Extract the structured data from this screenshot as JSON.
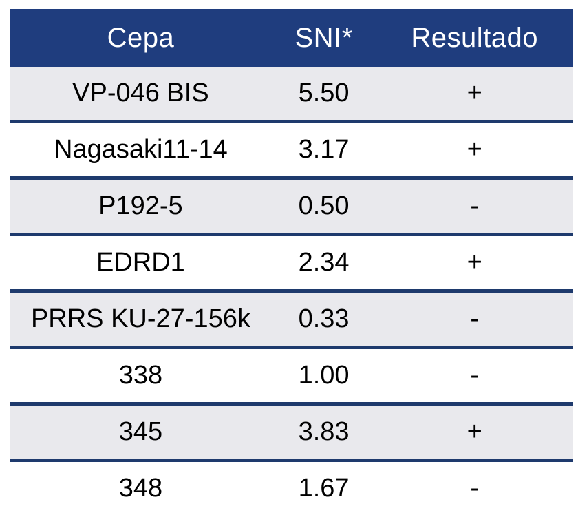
{
  "table": {
    "columns": [
      "Cepa",
      "SNI*",
      "Resultado"
    ],
    "rows": [
      {
        "cepa": "VP-046 BIS",
        "sni": "5.50",
        "resultado": "+"
      },
      {
        "cepa": "Nagasaki11-14",
        "sni": "3.17",
        "resultado": "+"
      },
      {
        "cepa": "P192-5",
        "sni": "0.50",
        "resultado": "-"
      },
      {
        "cepa": "EDRD1",
        "sni": "2.34",
        "resultado": "+"
      },
      {
        "cepa": "PRRS KU-27-156k",
        "sni": "0.33",
        "resultado": "-"
      },
      {
        "cepa": "338",
        "sni": "1.00",
        "resultado": "-"
      },
      {
        "cepa": "345",
        "sni": "3.83",
        "resultado": "+"
      },
      {
        "cepa": "348",
        "sni": "1.67",
        "resultado": "-"
      }
    ]
  },
  "chart_data": {
    "type": "table",
    "title": "",
    "columns": [
      "Cepa",
      "SNI*",
      "Resultado"
    ],
    "rows": [
      [
        "VP-046 BIS",
        5.5,
        "+"
      ],
      [
        "Nagasaki11-14",
        3.17,
        "+"
      ],
      [
        "P192-5",
        0.5,
        "-"
      ],
      [
        "EDRD1",
        2.34,
        "+"
      ],
      [
        "PRRS KU-27-156k",
        0.33,
        "-"
      ],
      [
        "338",
        1.0,
        "-"
      ],
      [
        "345",
        3.83,
        "+"
      ],
      [
        "348",
        1.67,
        "-"
      ]
    ]
  },
  "colors": {
    "header_bg": "#1f3d7e",
    "header_text": "#ffffff",
    "row_border": "#1e3a6d",
    "row_alt_bg": "#e9e9ed",
    "row_bg": "#ffffff",
    "cell_text": "#000000"
  }
}
